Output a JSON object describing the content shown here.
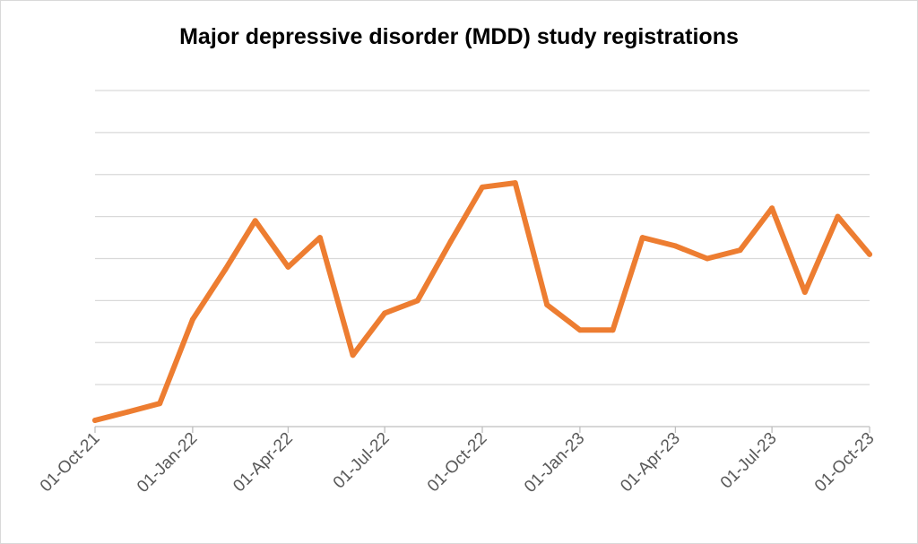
{
  "chart_data": {
    "type": "line",
    "title": "Major depressive disorder (MDD) study registrations",
    "xlabel": "",
    "ylabel": "",
    "y_tick_labels_shown": false,
    "grid": true,
    "legend": "none",
    "ylim": [
      0,
      8
    ],
    "x_tick_labels": [
      "01-Oct-21",
      "01-Jan-22",
      "01-Apr-22",
      "01-Jul-22",
      "01-Oct-22",
      "01-Jan-23",
      "01-Apr-23",
      "01-Jul-23",
      "01-Oct-23"
    ],
    "series": [
      {
        "color": "#ED7D31",
        "x": [
          "2021-10-01",
          "2021-11-01",
          "2021-12-01",
          "2022-01-01",
          "2022-02-01",
          "2022-03-01",
          "2022-04-01",
          "2022-05-01",
          "2022-06-01",
          "2022-07-01",
          "2022-08-01",
          "2022-09-01",
          "2022-10-01",
          "2022-11-01",
          "2022-12-01",
          "2023-01-01",
          "2023-02-01",
          "2023-03-01",
          "2023-04-01",
          "2023-05-01",
          "2023-06-01",
          "2023-07-01",
          "2023-08-01",
          "2023-09-01",
          "2023-10-01"
        ],
        "values": [
          0.15,
          0.35,
          0.55,
          2.55,
          3.75,
          4.9,
          3.8,
          4.5,
          1.7,
          2.7,
          3.0,
          4.4,
          5.7,
          5.8,
          2.9,
          2.3,
          2.3,
          4.5,
          4.3,
          4.0,
          4.2,
          5.2,
          3.2,
          5.0,
          4.1
        ]
      }
    ]
  }
}
